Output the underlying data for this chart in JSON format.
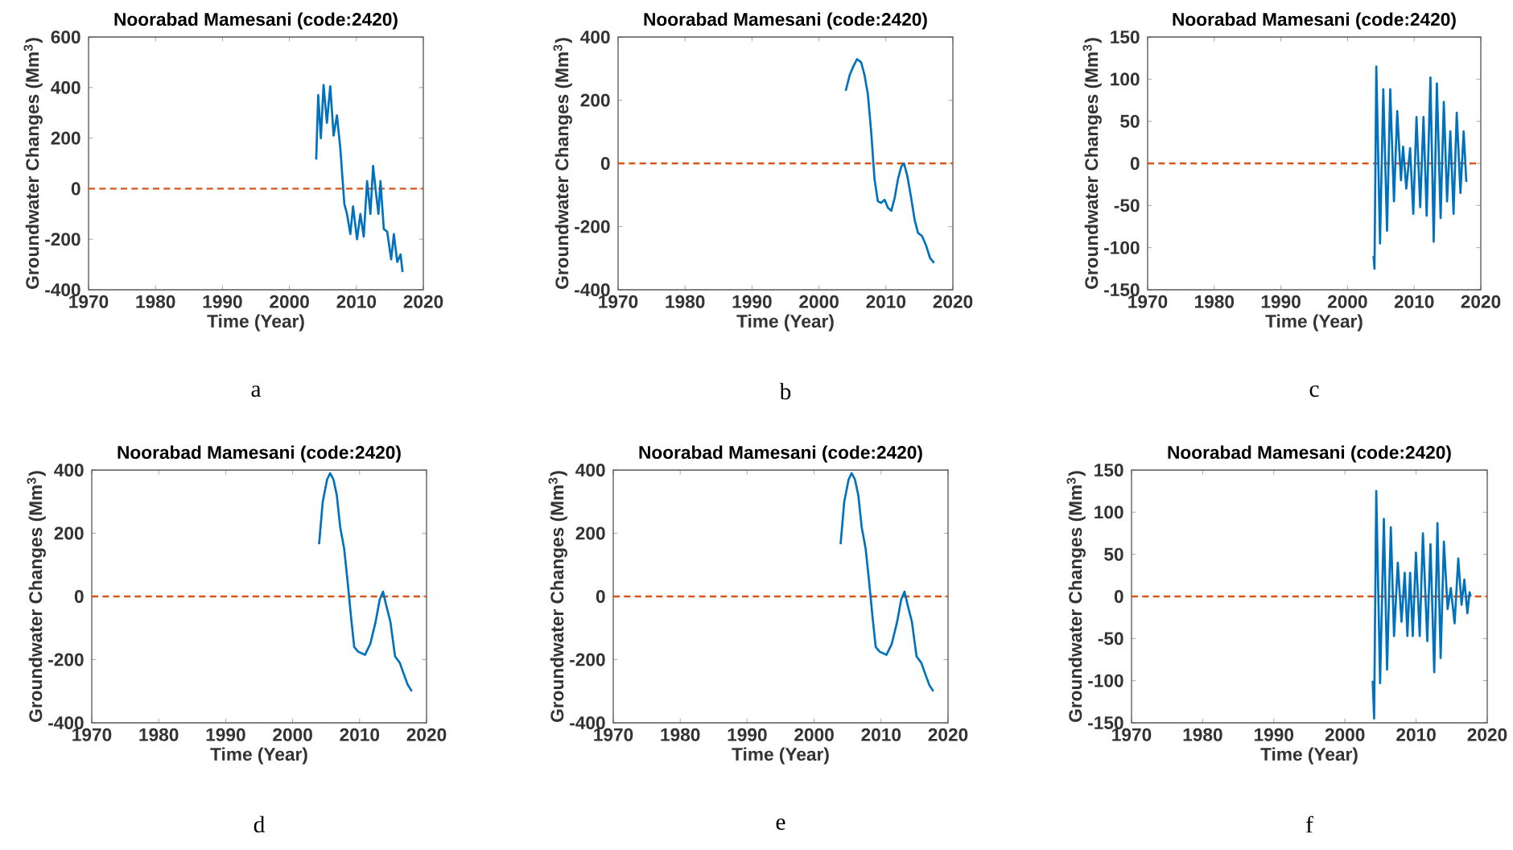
{
  "chart_data": [
    {
      "type": "line",
      "title": "Noorabad Mamesani (code:2420)",
      "xlabel": "Time (Year)",
      "ylabel": "Groundwater Changes (Mm$^{3}$)",
      "annotations": [
        "a"
      ],
      "xlim": [
        1970,
        2020
      ],
      "xticks": [
        1970,
        1980,
        1990,
        2000,
        2010,
        2020
      ],
      "ylim": [
        -400,
        600
      ],
      "yticks": [
        -400,
        -200,
        0,
        200,
        400,
        600
      ],
      "ref_lines": [
        {
          "axis": "y",
          "value": 0,
          "color": "#d95319",
          "line_style": "dashed"
        }
      ],
      "color": "#0072bd",
      "x": [
        2004,
        2004.3,
        2004.7,
        2005.1,
        2005.6,
        2006.1,
        2006.6,
        2007.1,
        2007.6,
        2008.2,
        2008.6,
        2009.1,
        2009.5,
        2010.1,
        2010.6,
        2011.1,
        2011.6,
        2012.1,
        2012.5,
        2012.9,
        2013.3,
        2013.6,
        2014.1,
        2014.6,
        2015.2,
        2015.6,
        2016.1,
        2016.6,
        2016.9
      ],
      "values": [
        115,
        370,
        200,
        410,
        260,
        405,
        210,
        290,
        160,
        -60,
        -100,
        -180,
        -70,
        -200,
        -100,
        -190,
        30,
        -100,
        90,
        -10,
        -100,
        30,
        -160,
        -170,
        -280,
        -180,
        -290,
        -260,
        -330
      ]
    },
    {
      "type": "line",
      "title": "Noorabad Mamesani (code:2420)",
      "xlabel": "Time (Year)",
      "ylabel": "Groundwater Changes (Mm$^{3}$)",
      "annotations": [
        "b"
      ],
      "xlim": [
        1970,
        2020
      ],
      "xticks": [
        1970,
        1980,
        1990,
        2000,
        2010,
        2020
      ],
      "ylim": [
        -400,
        400
      ],
      "yticks": [
        -400,
        -200,
        0,
        200,
        400
      ],
      "ref_lines": [
        {
          "axis": "y",
          "value": 0,
          "color": "#d95319",
          "line_style": "dashed"
        }
      ],
      "color": "#0072bd",
      "x": [
        2004,
        2004.6,
        2005.2,
        2005.7,
        2006.3,
        2006.8,
        2007.3,
        2007.8,
        2008.3,
        2008.8,
        2009.3,
        2009.8,
        2010.3,
        2010.8,
        2011.3,
        2011.8,
        2012.3,
        2012.7,
        2013.2,
        2013.7,
        2014.3,
        2014.8,
        2015.4,
        2016,
        2016.6,
        2017.2
      ],
      "values": [
        230,
        280,
        310,
        330,
        320,
        280,
        220,
        100,
        -50,
        -120,
        -125,
        -115,
        -140,
        -150,
        -110,
        -50,
        -10,
        0,
        -40,
        -100,
        -180,
        -220,
        -230,
        -260,
        -300,
        -315
      ]
    },
    {
      "type": "line",
      "title": "Noorabad Mamesani (code:2420)",
      "xlabel": "Time (Year)",
      "ylabel": "Groundwater Changes (Mm$^{3}$)",
      "annotations": [
        "c"
      ],
      "xlim": [
        1970,
        2020
      ],
      "xticks": [
        1970,
        1980,
        1990,
        2000,
        2010,
        2020
      ],
      "ylim": [
        -150,
        150
      ],
      "yticks": [
        -150,
        -100,
        -50,
        0,
        50,
        100,
        150
      ],
      "ref_lines": [
        {
          "axis": "y",
          "value": 0,
          "color": "#d95319",
          "line_style": "dashed"
        }
      ],
      "color": "#0072bd",
      "x": [
        2003.9,
        2004.05,
        2004.32,
        2004.88,
        2005.37,
        2005.93,
        2006.41,
        2006.97,
        2007.46,
        2008.02,
        2008.34,
        2008.82,
        2009.39,
        2009.87,
        2010.35,
        2010.91,
        2011.4,
        2011.88,
        2012.44,
        2012.93,
        2013.41,
        2013.97,
        2014.45,
        2014.94,
        2015.43,
        2015.91,
        2016.39,
        2016.95,
        2017.43,
        2017.83
      ],
      "values": [
        -110,
        -125,
        115,
        -95,
        88,
        -80,
        88,
        -45,
        62,
        -20,
        20,
        -30,
        18,
        -60,
        55,
        -52,
        55,
        -62,
        102,
        -93,
        95,
        -65,
        73,
        -45,
        38,
        -60,
        60,
        -35,
        38,
        -22
      ]
    },
    {
      "type": "line",
      "title": "Noorabad Mamesani (code:2420)",
      "xlabel": "Time (Year)",
      "ylabel": "Groundwater Changes (Mm$^{3}$)",
      "annotations": [
        "d"
      ],
      "xlim": [
        1970,
        2020
      ],
      "xticks": [
        1970,
        1980,
        1990,
        2000,
        2010,
        2020
      ],
      "ylim": [
        -400,
        400
      ],
      "yticks": [
        -400,
        -200,
        0,
        200,
        400
      ],
      "ref_lines": [
        {
          "axis": "y",
          "value": 0,
          "color": "#d95319",
          "line_style": "dashed"
        }
      ],
      "color": "#0072bd",
      "x": [
        2003.95,
        2004.5,
        2005.15,
        2005.6,
        2006.1,
        2006.6,
        2007.1,
        2007.7,
        2008.2,
        2008.7,
        2009.2,
        2009.8,
        2010.8,
        2011.6,
        2012.4,
        2013.0,
        2013.5,
        2014.0,
        2014.6,
        2015.3,
        2016.0,
        2016.5,
        2017.2,
        2017.8
      ],
      "values": [
        165,
        300,
        370,
        390,
        370,
        320,
        220,
        150,
        50,
        -60,
        -160,
        -175,
        -185,
        -150,
        -80,
        -10,
        15,
        -30,
        -80,
        -190,
        -210,
        -240,
        -280,
        -300
      ]
    },
    {
      "type": "line",
      "title": "Noorabad Mamesani (code:2420)",
      "xlabel": "Time (Year)",
      "ylabel": "Groundwater Changes (Mm$^{3}$)",
      "annotations": [
        "e"
      ],
      "xlim": [
        1970,
        2020
      ],
      "xticks": [
        1970,
        1980,
        1990,
        2000,
        2010,
        2020
      ],
      "ylim": [
        -400,
        400
      ],
      "yticks": [
        -400,
        -200,
        0,
        200,
        400
      ],
      "ref_lines": [
        {
          "axis": "y",
          "value": 0,
          "color": "#d95319",
          "line_style": "dashed"
        }
      ],
      "color": "#0072bd",
      "x": [
        2003.95,
        2004.5,
        2005.15,
        2005.6,
        2006.1,
        2006.6,
        2007.1,
        2007.7,
        2008.2,
        2008.7,
        2009.2,
        2009.8,
        2010.8,
        2011.6,
        2012.4,
        2013.0,
        2013.5,
        2014.0,
        2014.6,
        2015.3,
        2016.0,
        2016.5,
        2017.2,
        2017.8
      ],
      "values": [
        165,
        300,
        370,
        390,
        370,
        320,
        220,
        150,
        50,
        -60,
        -160,
        -175,
        -185,
        -150,
        -80,
        -10,
        15,
        -30,
        -80,
        -190,
        -210,
        -240,
        -280,
        -300
      ]
    },
    {
      "type": "line",
      "title": "Noorabad Mamesani (code:2420)",
      "xlabel": "Time (Year)",
      "ylabel": "Groundwater Changes (Mm$^{3}$)",
      "annotations": [
        "f"
      ],
      "xlim": [
        1970,
        2020
      ],
      "xticks": [
        1970,
        1980,
        1990,
        2000,
        2010,
        2020
      ],
      "ylim": [
        -150,
        150
      ],
      "yticks": [
        -150,
        -100,
        -50,
        0,
        50,
        100,
        150
      ],
      "ref_lines": [
        {
          "axis": "y",
          "value": 0,
          "color": "#d95319",
          "line_style": "dashed"
        }
      ],
      "color": "#0072bd",
      "x": [
        2003.9,
        2004.1,
        2004.4,
        2004.94,
        2005.47,
        2005.92,
        2006.45,
        2006.9,
        2007.43,
        2007.95,
        2008.4,
        2008.78,
        2009.16,
        2009.53,
        2009.98,
        2010.51,
        2010.96,
        2011.57,
        2012.02,
        2012.55,
        2013.0,
        2013.45,
        2013.91,
        2014.43,
        2014.88,
        2015.41,
        2015.93,
        2016.39,
        2016.78,
        2017.21,
        2017.52,
        2017.67
      ],
      "values": [
        -100,
        -145,
        125,
        -103,
        92,
        -87,
        82,
        -47,
        40,
        -30,
        28,
        -47,
        28,
        -47,
        52,
        -47,
        75,
        -53,
        62,
        -90,
        87,
        -73,
        65,
        -15,
        10,
        -32,
        45,
        -10,
        20,
        -20,
        5,
        0
      ]
    }
  ]
}
